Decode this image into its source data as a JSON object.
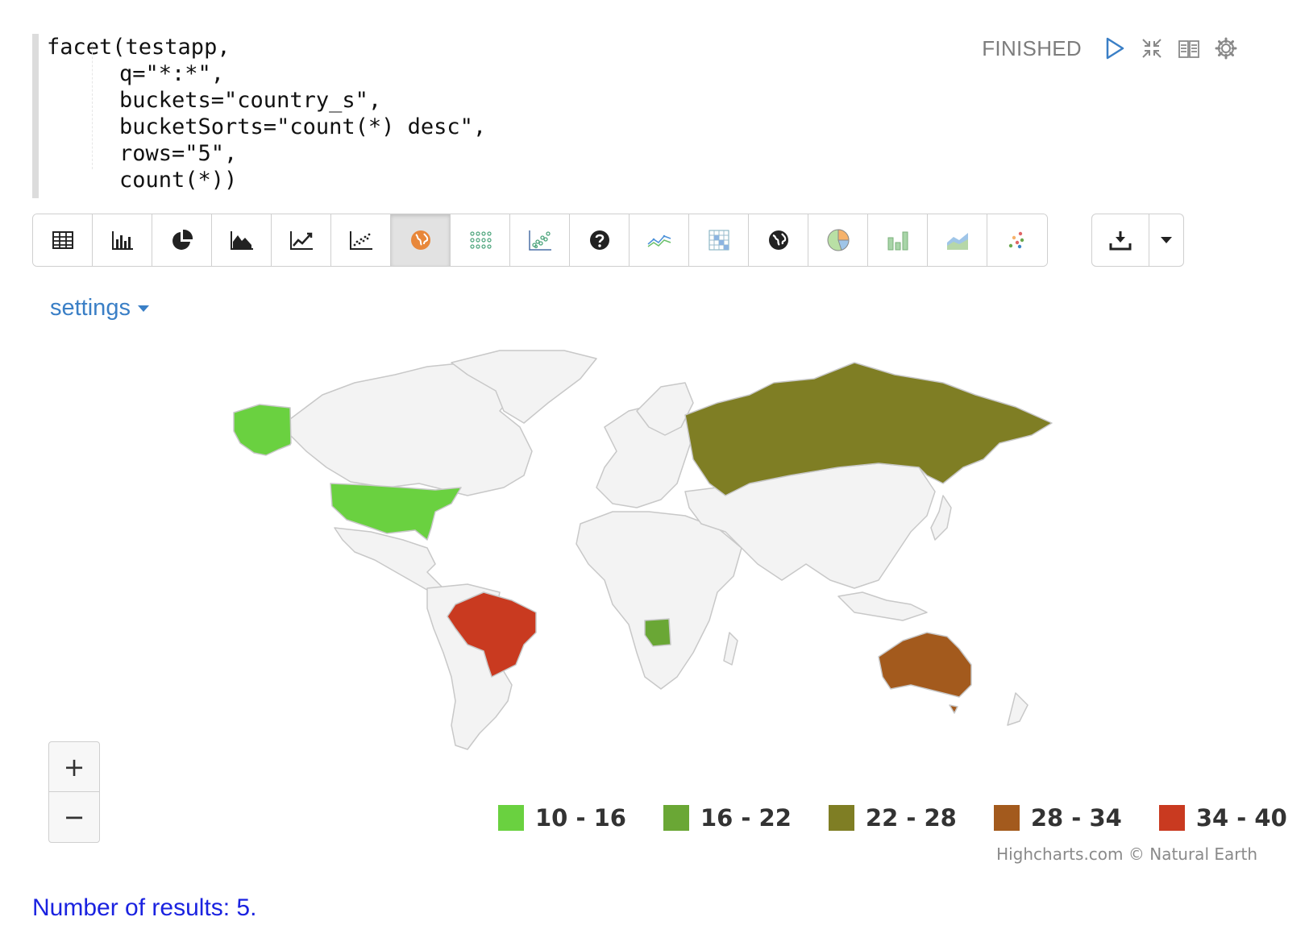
{
  "code": {
    "lines": [
      "facet(testapp,",
      "q=\"*:*\",",
      "buckets=\"country_s\",",
      "bucketSorts=\"count(*) desc\",",
      "rows=\"5\",",
      "count(*))"
    ]
  },
  "status": {
    "label": "FINISHED",
    "icons": [
      "run-icon",
      "collapse-icon",
      "book-icon",
      "gear-icon"
    ]
  },
  "toolbar": {
    "buttons": [
      {
        "icon": "table-icon",
        "active": false
      },
      {
        "icon": "bar-chart-icon",
        "active": false
      },
      {
        "icon": "pie-chart-icon",
        "active": false
      },
      {
        "icon": "area-chart-icon",
        "active": false
      },
      {
        "icon": "line-chart-icon",
        "active": false
      },
      {
        "icon": "scatter-chart-icon",
        "active": false
      },
      {
        "icon": "map-icon",
        "active": true
      },
      {
        "icon": "bubble-grid-icon",
        "active": false
      },
      {
        "icon": "scatter-plot-icon",
        "active": false
      },
      {
        "icon": "help-icon",
        "active": false
      },
      {
        "icon": "multi-line-icon",
        "active": false
      },
      {
        "icon": "heatmap-grid-icon",
        "active": false
      },
      {
        "icon": "globe-icon",
        "active": false
      },
      {
        "icon": "color-pie-icon",
        "active": false
      },
      {
        "icon": "color-bars-icon",
        "active": false
      },
      {
        "icon": "color-area-icon",
        "active": false
      },
      {
        "icon": "color-dots-icon",
        "active": false
      }
    ],
    "export_icon": "download-icon",
    "dropdown_icon": "caret-down-icon"
  },
  "settings": {
    "label": "settings"
  },
  "map": {
    "zoom_in": "+",
    "zoom_out": "−",
    "credits": "Highcharts.com © Natural Earth",
    "legend": [
      {
        "label": "10 - 16",
        "color": "#6ad140"
      },
      {
        "label": "16 - 22",
        "color": "#6aa735"
      },
      {
        "label": "22 - 28",
        "color": "#7f7e24"
      },
      {
        "label": "28 - 34",
        "color": "#a35a1d"
      },
      {
        "label": "34 - 40",
        "color": "#c93a20"
      }
    ],
    "land_color": "#f3f3f3",
    "border_color": "#c8c8c8",
    "countries": [
      {
        "name": "United States",
        "color": "#6ad140"
      },
      {
        "name": "Angola",
        "color": "#6aa735"
      },
      {
        "name": "Russia",
        "color": "#7f7e24"
      },
      {
        "name": "Australia",
        "color": "#a35a1d"
      },
      {
        "name": "Brazil",
        "color": "#c93a20"
      }
    ]
  },
  "results": {
    "text": "Number of results: 5."
  }
}
